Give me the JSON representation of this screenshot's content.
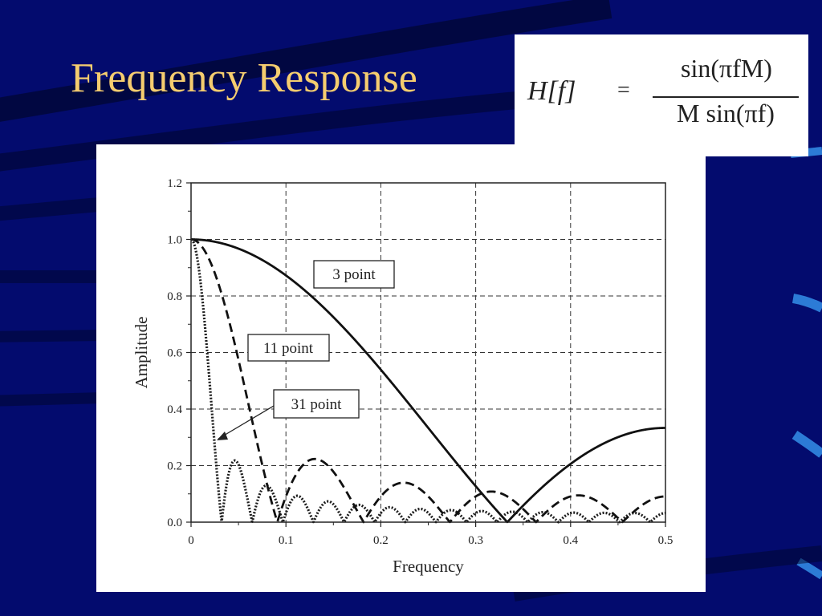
{
  "slide": {
    "title": "Frequency Response",
    "formula": {
      "lhs": "H[f]",
      "equals": "=",
      "numerator": "sin(πfM)",
      "denominator": "M sin(πf)"
    }
  },
  "colors": {
    "background": "#030b6e",
    "title": "#f5cd6f",
    "curve": "#222222"
  },
  "chart_data": {
    "type": "line",
    "title": "",
    "xlabel": "Frequency",
    "ylabel": "Amplitude",
    "xlim": [
      0,
      0.5
    ],
    "ylim": [
      0,
      1.2
    ],
    "xticks": [
      "0",
      "0.1",
      "0.2",
      "0.3",
      "0.4",
      "0.5"
    ],
    "yticks": [
      "0.0",
      "0.2",
      "0.4",
      "0.6",
      "0.8",
      "1.0",
      "1.2"
    ],
    "grid": true,
    "formula": "H[f] = |sin(πfM) / (M sin(πf))|",
    "series": [
      {
        "name": "3 point",
        "M": 3,
        "style": "solid",
        "x": [
          0,
          0.05,
          0.1,
          0.15,
          0.2,
          0.25,
          0.3,
          0.333,
          0.35,
          0.4,
          0.45,
          0.5
        ],
        "y": [
          1.0,
          0.97,
          0.87,
          0.73,
          0.54,
          0.33,
          0.12,
          0.0,
          0.06,
          0.21,
          0.3,
          0.33
        ]
      },
      {
        "name": "11 point",
        "M": 11,
        "style": "dashed",
        "x": [
          0,
          0.025,
          0.05,
          0.075,
          0.091,
          0.132,
          0.182,
          0.224,
          0.273,
          0.318,
          0.364,
          0.41,
          0.455,
          0.5
        ],
        "y": [
          1.0,
          0.87,
          0.55,
          0.19,
          0.0,
          0.22,
          0.0,
          0.14,
          0.0,
          0.11,
          0.0,
          0.1,
          0.0,
          0.09
        ]
      },
      {
        "name": "31 point",
        "M": 31,
        "style": "dotted",
        "x": [
          0,
          0.01,
          0.02,
          0.032,
          0.048,
          0.065,
          0.081,
          0.097,
          0.5
        ],
        "y": [
          1.0,
          0.73,
          0.2,
          0.0,
          0.22,
          0.0,
          0.13,
          0.0,
          0.03
        ]
      }
    ],
    "annotations": [
      {
        "text": "3 point",
        "series": "3 point"
      },
      {
        "text": "11 point",
        "series": "11 point"
      },
      {
        "text": "31 point",
        "series": "31 point",
        "arrow": true
      }
    ]
  }
}
